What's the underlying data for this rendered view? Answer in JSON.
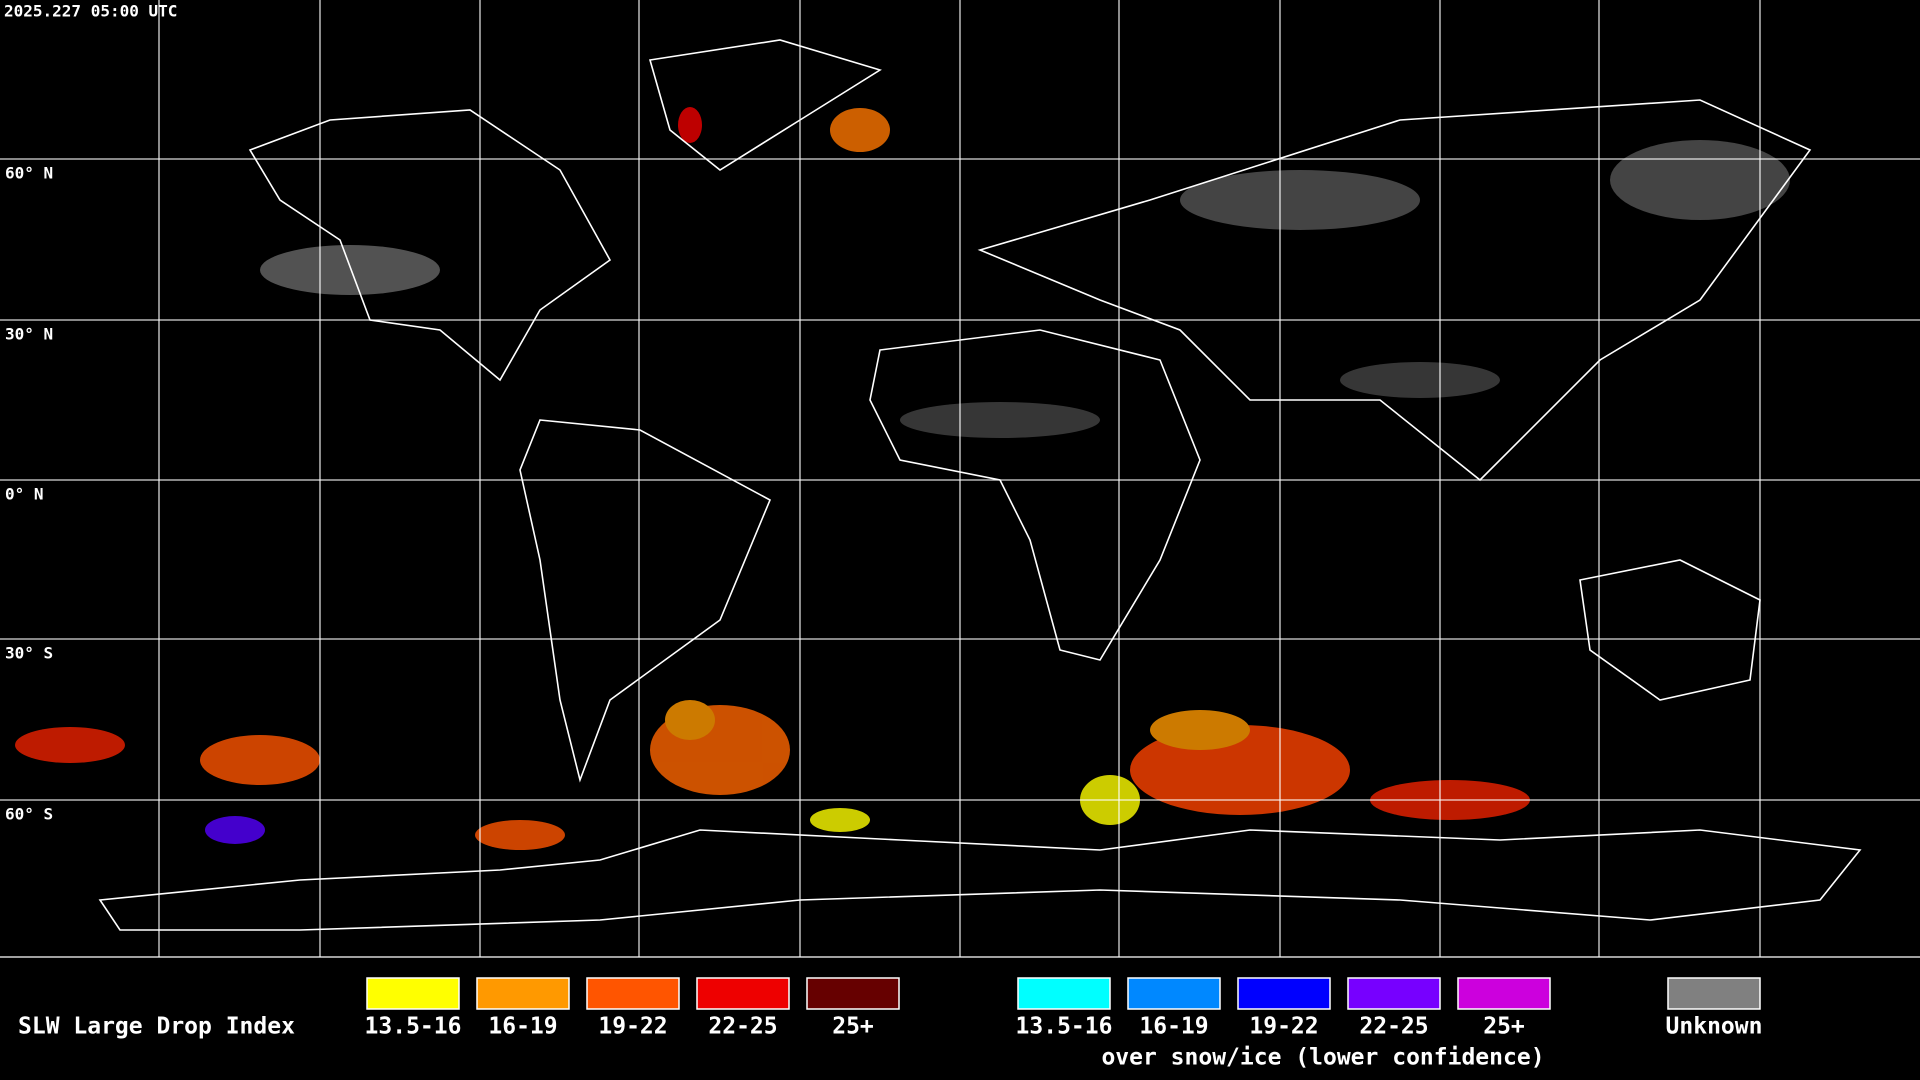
{
  "header": {
    "timestamp": "2025.227 05:00 UTC"
  },
  "map": {
    "lat_labels": [
      "60° N",
      "30° N",
      "0° N",
      "30° S",
      "60° S"
    ]
  },
  "legend": {
    "title": "SLW Large Drop Index",
    "liquid": [
      {
        "label": "13.5-16",
        "color": "#ffff00"
      },
      {
        "label": "16-19",
        "color": "#ff9900"
      },
      {
        "label": "19-22",
        "color": "#ff5500"
      },
      {
        "label": "22-25",
        "color": "#ee0000"
      },
      {
        "label": "25+",
        "color": "#660000"
      }
    ],
    "snow_ice": [
      {
        "label": "13.5-16",
        "color": "#00ffff"
      },
      {
        "label": "16-19",
        "color": "#0088ff"
      },
      {
        "label": "19-22",
        "color": "#0000ff"
      },
      {
        "label": "22-25",
        "color": "#7700ff"
      },
      {
        "label": "25+",
        "color": "#cc00dd"
      }
    ],
    "snow_ice_caption": "over snow/ice (lower confidence)",
    "unknown": {
      "label": "Unknown",
      "color": "#808080"
    }
  }
}
